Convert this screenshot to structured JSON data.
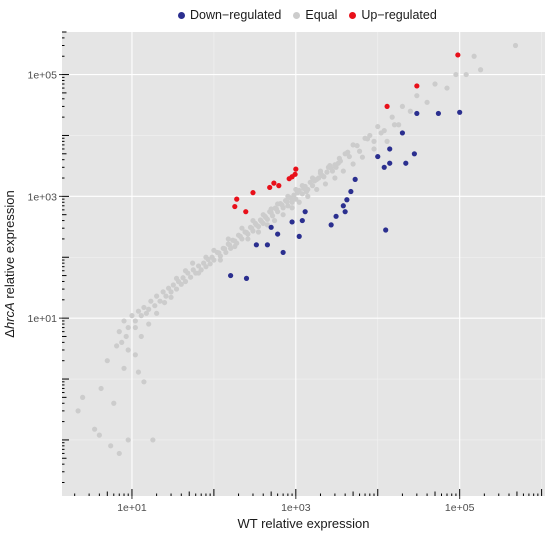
{
  "chart_data": {
    "type": "scatter",
    "xlabel": "WT relative expression",
    "ylabel_prefix": "Δ",
    "ylabel_italic": "hrcA",
    "ylabel_suffix": " relative expression",
    "xscale": "log10",
    "yscale": "log10",
    "xlim": [
      1.4,
      1100000
    ],
    "ylim": [
      0.012,
      500000
    ],
    "x_ticks": [
      {
        "value": 10,
        "label": "1e+01"
      },
      {
        "value": 1000,
        "label": "1e+03"
      },
      {
        "value": 100000,
        "label": "1e+05"
      }
    ],
    "y_ticks": [
      {
        "value": 10,
        "label": "1e+01"
      },
      {
        "value": 1000,
        "label": "1e+03"
      },
      {
        "value": 100000,
        "label": "1e+05"
      }
    ],
    "grid": true,
    "legend": {
      "position": "top",
      "entries": [
        {
          "label": "Down−regulated",
          "color": "#2b2f8f"
        },
        {
          "label": "Equal",
          "color": "#cccccc"
        },
        {
          "label": "Up−regulated",
          "color": "#e8101a"
        }
      ]
    },
    "series": [
      {
        "name": "Up−regulated",
        "color": "#e8101a",
        "points": [
          [
            95000,
            210000
          ],
          [
            30000,
            65000
          ],
          [
            13000,
            30000
          ],
          [
            1000,
            2800
          ],
          [
            980,
            2300
          ],
          [
            900,
            2100
          ],
          [
            830,
            1950
          ],
          [
            620,
            1500
          ],
          [
            540,
            1650
          ],
          [
            480,
            1400
          ],
          [
            300,
            1150
          ],
          [
            190,
            900
          ],
          [
            180,
            680
          ],
          [
            245,
            560
          ]
        ]
      },
      {
        "name": "Down−regulated",
        "color": "#2b2f8f",
        "points": [
          [
            100000,
            24000
          ],
          [
            55000,
            23000
          ],
          [
            30000,
            23000
          ],
          [
            20000,
            11000
          ],
          [
            14000,
            6000
          ],
          [
            14000,
            3500
          ],
          [
            10000,
            4500
          ],
          [
            28000,
            5000
          ],
          [
            22000,
            3500
          ],
          [
            12000,
            3000
          ],
          [
            5300,
            1900
          ],
          [
            4700,
            1200
          ],
          [
            4200,
            880
          ],
          [
            4000,
            560
          ],
          [
            3800,
            700
          ],
          [
            3100,
            470
          ],
          [
            2700,
            340
          ],
          [
            1300,
            560
          ],
          [
            1100,
            220
          ],
          [
            1200,
            400
          ],
          [
            900,
            380
          ],
          [
            700,
            120
          ],
          [
            600,
            240
          ],
          [
            500,
            310
          ],
          [
            450,
            160
          ],
          [
            330,
            160
          ],
          [
            250,
            45
          ],
          [
            160,
            50
          ],
          [
            12500,
            280
          ]
        ]
      },
      {
        "name": "Equal",
        "color": "#cccccc",
        "points": [
          [
            480000,
            300000
          ],
          [
            150000,
            200000
          ],
          [
            180000,
            120000
          ],
          [
            120000,
            100000
          ],
          [
            90000,
            100000
          ],
          [
            70000,
            60000
          ],
          [
            50000,
            70000
          ],
          [
            40000,
            35000
          ],
          [
            30000,
            45000
          ],
          [
            25000,
            25000
          ],
          [
            20000,
            30000
          ],
          [
            18000,
            15000
          ],
          [
            15000,
            20000
          ],
          [
            12000,
            12000
          ],
          [
            10000,
            14000
          ],
          [
            9000,
            8000
          ],
          [
            8000,
            10000
          ],
          [
            7000,
            9000
          ],
          [
            6000,
            5500
          ],
          [
            5000,
            7000
          ],
          [
            4500,
            4500
          ],
          [
            4000,
            5000
          ],
          [
            3500,
            3800
          ],
          [
            3000,
            3300
          ],
          [
            2800,
            2600
          ],
          [
            2500,
            3000
          ],
          [
            2200,
            2100
          ],
          [
            2000,
            2400
          ],
          [
            1800,
            1900
          ],
          [
            1600,
            1500
          ],
          [
            1500,
            1700
          ],
          [
            1400,
            1300
          ],
          [
            1300,
            1450
          ],
          [
            1200,
            1100
          ],
          [
            1100,
            1250
          ],
          [
            1000,
            900
          ],
          [
            950,
            1050
          ],
          [
            900,
            800
          ],
          [
            850,
            950
          ],
          [
            800,
            700
          ],
          [
            750,
            850
          ],
          [
            700,
            650
          ],
          [
            650,
            760
          ],
          [
            600,
            560
          ],
          [
            560,
            640
          ],
          [
            520,
            480
          ],
          [
            480,
            560
          ],
          [
            450,
            420
          ],
          [
            420,
            470
          ],
          [
            400,
            360
          ],
          [
            370,
            410
          ],
          [
            350,
            320
          ],
          [
            320,
            360
          ],
          [
            300,
            270
          ],
          [
            280,
            310
          ],
          [
            260,
            240
          ],
          [
            240,
            260
          ],
          [
            220,
            200
          ],
          [
            200,
            230
          ],
          [
            190,
            170
          ],
          [
            170,
            190
          ],
          [
            160,
            140
          ],
          [
            150,
            165
          ],
          [
            140,
            120
          ],
          [
            130,
            140
          ],
          [
            120,
            105
          ],
          [
            110,
            120
          ],
          [
            100,
            90
          ],
          [
            95,
            100
          ],
          [
            90,
            78
          ],
          [
            85,
            92
          ],
          [
            80,
            70
          ],
          [
            75,
            80
          ],
          [
            70,
            62
          ],
          [
            65,
            72
          ],
          [
            60,
            55
          ],
          [
            56,
            62
          ],
          [
            52,
            47
          ],
          [
            48,
            55
          ],
          [
            45,
            40
          ],
          [
            42,
            46
          ],
          [
            40,
            36
          ],
          [
            37,
            40
          ],
          [
            35,
            30
          ],
          [
            32,
            35
          ],
          [
            30,
            27
          ],
          [
            28,
            31
          ],
          [
            26,
            23
          ],
          [
            24,
            27
          ],
          [
            22,
            19
          ],
          [
            20,
            23
          ],
          [
            19,
            16
          ],
          [
            17,
            19
          ],
          [
            16,
            14
          ],
          [
            15,
            12
          ],
          [
            14,
            15
          ],
          [
            13,
            11
          ],
          [
            12,
            13
          ],
          [
            11,
            9
          ],
          [
            10,
            11
          ],
          [
            9,
            7
          ],
          [
            8,
            9
          ],
          [
            7,
            6
          ],
          [
            8.5,
            5
          ],
          [
            7.5,
            4
          ],
          [
            6.5,
            3.5
          ],
          [
            9,
            3
          ],
          [
            11,
            2.5
          ],
          [
            12,
            1.3
          ],
          [
            14,
            0.9
          ],
          [
            2.5,
            0.5
          ],
          [
            2.2,
            0.3
          ],
          [
            3.5,
            0.15
          ],
          [
            4,
            0.12
          ],
          [
            5.5,
            0.08
          ],
          [
            7,
            0.06
          ],
          [
            9,
            0.1
          ],
          [
            18,
            0.1
          ],
          [
            6,
            0.4
          ],
          [
            8,
            1.5
          ],
          [
            5,
            2
          ],
          [
            4.2,
            0.7
          ],
          [
            11,
            7
          ],
          [
            13,
            5
          ],
          [
            16,
            8
          ],
          [
            20,
            12
          ],
          [
            25,
            18
          ],
          [
            30,
            22
          ],
          [
            35,
            45
          ],
          [
            45,
            60
          ],
          [
            55,
            80
          ],
          [
            65,
            55
          ],
          [
            80,
            100
          ],
          [
            100,
            130
          ],
          [
            120,
            90
          ],
          [
            150,
            200
          ],
          [
            180,
            150
          ],
          [
            220,
            300
          ],
          [
            260,
            200
          ],
          [
            300,
            400
          ],
          [
            350,
            260
          ],
          [
            400,
            500
          ],
          [
            450,
            340
          ],
          [
            500,
            620
          ],
          [
            550,
            400
          ],
          [
            600,
            750
          ],
          [
            700,
            500
          ],
          [
            800,
            1000
          ],
          [
            900,
            650
          ],
          [
            1000,
            1300
          ],
          [
            1100,
            800
          ],
          [
            1200,
            1500
          ],
          [
            1400,
            1000
          ],
          [
            1600,
            2000
          ],
          [
            1800,
            1300
          ],
          [
            2000,
            2600
          ],
          [
            2300,
            1600
          ],
          [
            2600,
            3200
          ],
          [
            3000,
            2000
          ],
          [
            3400,
            4200
          ],
          [
            3800,
            2600
          ],
          [
            4300,
            5300
          ],
          [
            5000,
            3400
          ],
          [
            5600,
            6800
          ],
          [
            6500,
            4400
          ],
          [
            7500,
            8800
          ],
          [
            9000,
            6000
          ],
          [
            11000,
            11000
          ],
          [
            13000,
            8000
          ],
          [
            16000,
            15000
          ],
          [
            2100,
            2200
          ],
          [
            2400,
            2500
          ],
          [
            2700,
            2900
          ],
          [
            3100,
            3000
          ],
          [
            3300,
            3500
          ],
          [
            1700,
            1800
          ],
          [
            1900,
            2000
          ],
          [
            1250,
            1350
          ],
          [
            1350,
            1200
          ],
          [
            1050,
            1150
          ],
          [
            880,
            920
          ],
          [
            780,
            820
          ],
          [
            680,
            720
          ],
          [
            580,
            620
          ],
          [
            500,
            540
          ],
          [
            430,
            450
          ],
          [
            380,
            390
          ],
          [
            330,
            340
          ],
          [
            290,
            300
          ],
          [
            250,
            255
          ],
          [
            210,
            220
          ],
          [
            180,
            185
          ],
          [
            155,
            160
          ],
          [
            135,
            138
          ],
          [
            115,
            118
          ]
        ]
      }
    ]
  }
}
